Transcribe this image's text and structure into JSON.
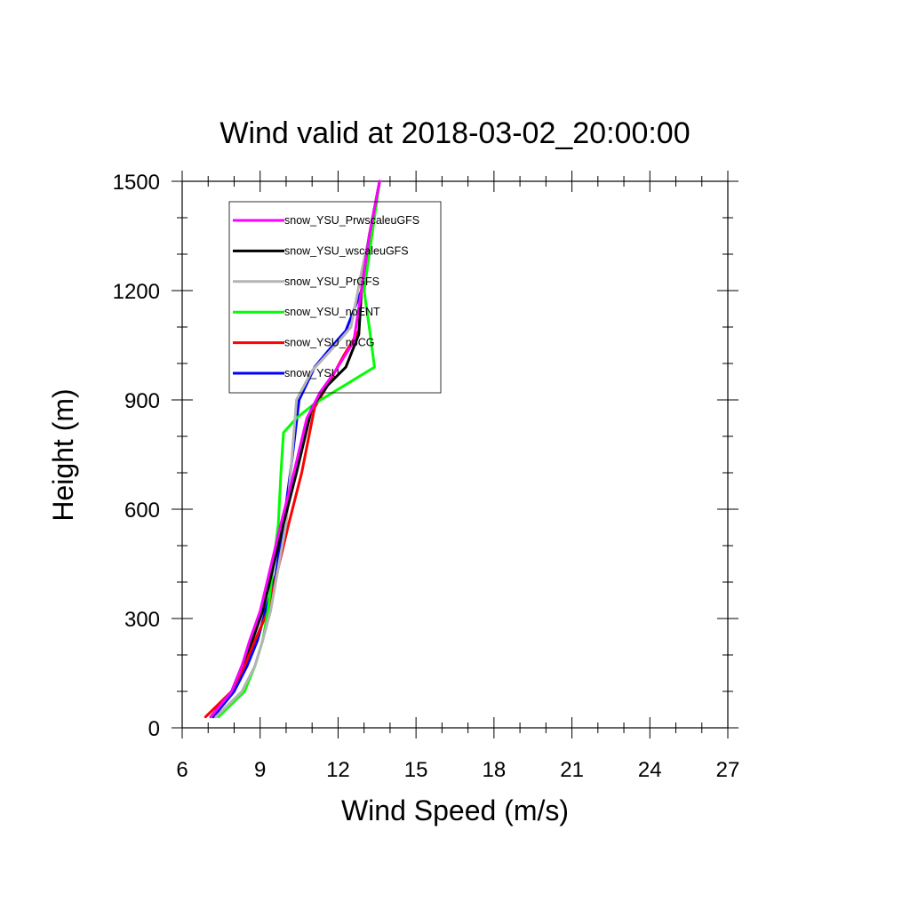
{
  "chart_data": {
    "type": "line",
    "title": "Wind valid at 2018-03-02_20:00:00",
    "xlabel": "Wind Speed (m/s)",
    "ylabel": "Height (m)",
    "xlim": [
      6,
      27
    ],
    "ylim": [
      0,
      1500
    ],
    "xticks": [
      6,
      9,
      12,
      15,
      18,
      21,
      24,
      27
    ],
    "yticks": [
      0,
      300,
      600,
      900,
      1200,
      1500
    ],
    "grid": false,
    "legend_position": "top-left",
    "series": [
      {
        "name": "snow_YSU",
        "color": "#0000ff",
        "x": [
          7.2,
          8.0,
          8.5,
          8.9,
          9.2,
          9.6,
          9.9,
          10.2,
          10.5,
          11.1,
          11.8,
          12.3,
          12.9,
          13.2,
          13.6
        ],
        "y": [
          30,
          100,
          170,
          240,
          320,
          420,
          560,
          720,
          900,
          990,
          1050,
          1090,
          1200,
          1350,
          1500
        ]
      },
      {
        "name": "snow_YSU_noCG",
        "color": "#ff0000",
        "x": [
          6.9,
          7.9,
          8.4,
          8.8,
          9.3,
          9.7,
          10.1,
          10.6,
          11.1,
          11.6,
          12.2,
          12.8,
          12.9,
          13.2,
          13.6
        ],
        "y": [
          30,
          100,
          170,
          240,
          320,
          440,
          560,
          700,
          880,
          940,
          1020,
          1090,
          1200,
          1350,
          1500
        ]
      },
      {
        "name": "snow_YSU_noENT",
        "color": "#00ff00",
        "x": [
          7.4,
          8.4,
          8.8,
          9.1,
          9.3,
          9.5,
          9.7,
          9.8,
          9.9,
          10.4,
          11.1,
          13.4,
          13.2,
          13.0,
          13.6
        ],
        "y": [
          30,
          100,
          170,
          240,
          320,
          440,
          560,
          700,
          810,
          850,
          890,
          990,
          1100,
          1200,
          1500
        ]
      },
      {
        "name": "snow_YSU_PrGFS",
        "color": "#b4b4b4",
        "x": [
          7.3,
          8.3,
          8.8,
          9.1,
          9.4,
          9.7,
          10.0,
          10.2,
          10.4,
          11.0,
          11.9,
          12.5,
          12.9,
          13.2,
          13.6
        ],
        "y": [
          30,
          100,
          170,
          240,
          320,
          440,
          560,
          720,
          900,
          980,
          1050,
          1100,
          1250,
          1350,
          1500
        ]
      },
      {
        "name": "snow_YSU_wscaleuGFS",
        "color": "#000000",
        "x": [
          7.1,
          7.9,
          8.3,
          8.7,
          9.1,
          9.5,
          9.9,
          10.4,
          11.0,
          11.6,
          12.3,
          12.8,
          12.9,
          13.2,
          13.6
        ],
        "y": [
          30,
          100,
          170,
          240,
          320,
          440,
          560,
          700,
          880,
          940,
          990,
          1080,
          1200,
          1350,
          1500
        ]
      },
      {
        "name": "snow_YSU_PrwscaleuGFS",
        "color": "#ff00ff",
        "x": [
          7.1,
          7.9,
          8.3,
          8.6,
          9.0,
          9.4,
          9.8,
          10.3,
          10.8,
          11.3,
          11.9,
          12.6,
          12.9,
          13.2,
          13.6
        ],
        "y": [
          30,
          100,
          170,
          240,
          320,
          440,
          560,
          700,
          850,
          920,
          980,
          1060,
          1200,
          1350,
          1500
        ]
      }
    ],
    "legend_order": [
      "snow_YSU_PrwscaleuGFS",
      "snow_YSU_wscaleuGFS",
      "snow_YSU_PrGFS",
      "snow_YSU_noENT",
      "snow_YSU_noCG",
      "snow_YSU"
    ]
  }
}
